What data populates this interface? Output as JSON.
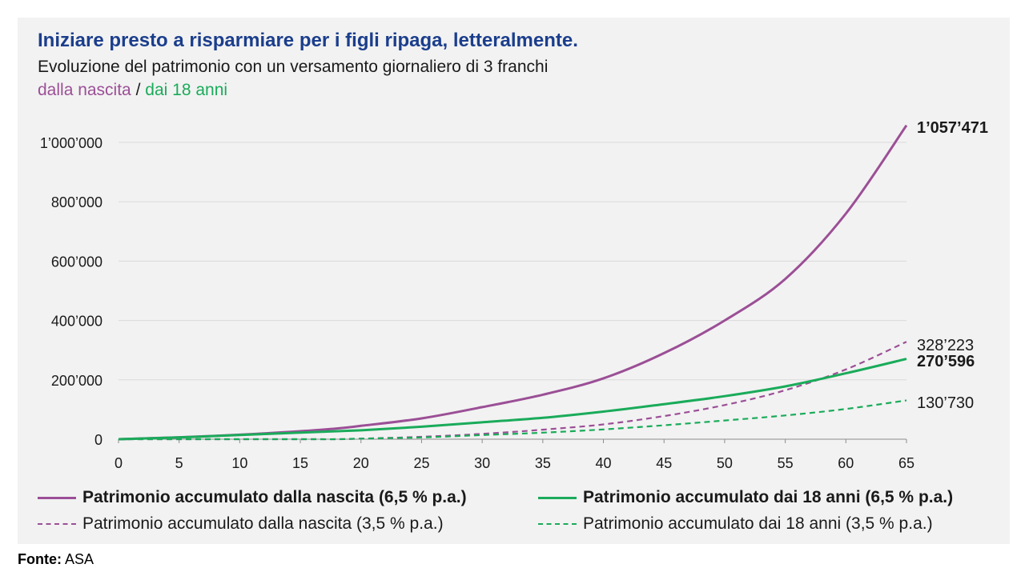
{
  "title": "Iniziare presto a risparmiare per i figli ripaga, letteralmente.",
  "subtitle": "Evoluzione del patrimonio con un versamento giornaliero di 3 franchi",
  "subtitle_part1": "dalla nascita",
  "subtitle_sep": "/",
  "subtitle_part2": "dai 18 anni",
  "source_label": "Fonte:",
  "source_value": "ASA",
  "colors": {
    "purple": "#9b4f96",
    "green": "#1aab5a",
    "title": "#1b3e8c",
    "panel": "#f2f2f2"
  },
  "chart_data": {
    "type": "line",
    "xlabel": "",
    "ylabel": "",
    "xlim": [
      0,
      65
    ],
    "ylim": [
      0,
      1100000
    ],
    "x_ticks": [
      "0",
      "5",
      "10",
      "15",
      "20",
      "25",
      "30",
      "35",
      "40",
      "45",
      "50",
      "55",
      "60",
      "65"
    ],
    "y_ticks": [
      "0",
      "200’000",
      "400’000",
      "600’000",
      "800’000",
      "1’000’000"
    ],
    "y_tick_values": [
      0,
      200000,
      400000,
      600000,
      800000,
      1000000
    ],
    "grid": "horizontal",
    "series": [
      {
        "name": "Patrimonio accumulato dalla nascita (6,5 % p.a.)",
        "color": "#9b4f96",
        "dash": "solid",
        "bold": true,
        "end_label": "1’057’471",
        "points": [
          [
            0,
            0
          ],
          [
            5,
            6500
          ],
          [
            10,
            15000
          ],
          [
            15,
            27000
          ],
          [
            18,
            36000
          ],
          [
            20,
            45000
          ],
          [
            25,
            70000
          ],
          [
            30,
            108000
          ],
          [
            35,
            150000
          ],
          [
            40,
            205000
          ],
          [
            45,
            290000
          ],
          [
            50,
            400000
          ],
          [
            55,
            540000
          ],
          [
            60,
            760000
          ],
          [
            65,
            1057471
          ]
        ]
      },
      {
        "name": "Patrimonio accumulato dalla nascita (3,5 % p.a.)",
        "color": "#9b4f96",
        "dash": "dashed",
        "bold": false,
        "end_label": "328’223",
        "points": [
          [
            0,
            0
          ],
          [
            5,
            0
          ],
          [
            10,
            0
          ],
          [
            15,
            0
          ],
          [
            18,
            0
          ],
          [
            20,
            2000
          ],
          [
            25,
            8000
          ],
          [
            30,
            18000
          ],
          [
            35,
            32000
          ],
          [
            40,
            50000
          ],
          [
            45,
            78000
          ],
          [
            50,
            115000
          ],
          [
            55,
            165000
          ],
          [
            60,
            235000
          ],
          [
            65,
            328223
          ]
        ]
      },
      {
        "name": "Patrimonio accumulato dai 18 anni (6,5 % p.a.)",
        "color": "#1aab5a",
        "dash": "solid",
        "bold": true,
        "end_label": "270’596",
        "points": [
          [
            0,
            0
          ],
          [
            5,
            6000
          ],
          [
            10,
            14000
          ],
          [
            15,
            22000
          ],
          [
            20,
            30000
          ],
          [
            25,
            42000
          ],
          [
            30,
            57000
          ],
          [
            35,
            72000
          ],
          [
            40,
            93000
          ],
          [
            45,
            118000
          ],
          [
            50,
            145000
          ],
          [
            55,
            178000
          ],
          [
            60,
            222000
          ],
          [
            65,
            270596
          ]
        ]
      },
      {
        "name": "Patrimonio accumulato dai 18 anni (3,5 % p.a.)",
        "color": "#1aab5a",
        "dash": "dashed",
        "bold": false,
        "end_label": "130’730",
        "points": [
          [
            0,
            0
          ],
          [
            5,
            0
          ],
          [
            10,
            0
          ],
          [
            15,
            0
          ],
          [
            18,
            0
          ],
          [
            20,
            2000
          ],
          [
            25,
            6000
          ],
          [
            30,
            14000
          ],
          [
            35,
            22000
          ],
          [
            40,
            33000
          ],
          [
            45,
            47000
          ],
          [
            50,
            63000
          ],
          [
            55,
            80000
          ],
          [
            60,
            102000
          ],
          [
            65,
            130730
          ]
        ]
      }
    ]
  }
}
